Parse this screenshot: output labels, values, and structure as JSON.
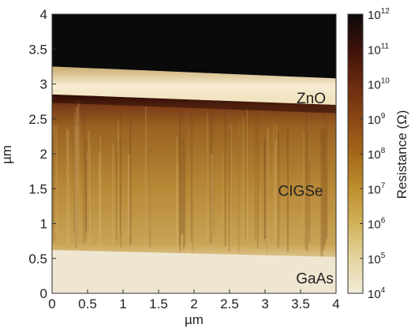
{
  "chart_data": {
    "type": "heatmap",
    "xlabel": "µm",
    "ylabel": "µm",
    "xlim": [
      0,
      4
    ],
    "ylim": [
      0,
      4
    ],
    "xticks": [
      "0",
      "0.5",
      "1",
      "1.5",
      "2",
      "2.5",
      "3",
      "3.5",
      "4"
    ],
    "yticks": [
      "0",
      "0.5",
      "1",
      "1.5",
      "2",
      "2.5",
      "3",
      "3.5",
      "4"
    ],
    "layers": [
      {
        "name": "GaAs",
        "y_bottom_left": 0,
        "y_bottom_right": 0,
        "y_top_left": 0.62,
        "y_top_right": 0.52,
        "resistance_log10": 4.1,
        "label_pos": [
          3.7,
          0.2
        ]
      },
      {
        "name": "CIGSe",
        "y_bottom_left": 0.62,
        "y_bottom_right": 0.52,
        "y_top_left": 2.85,
        "y_top_right": 2.7,
        "resistance_log10": 7.0,
        "label_pos": [
          3.5,
          1.45
        ]
      },
      {
        "name": "ZnO",
        "y_bottom_left": 2.85,
        "y_bottom_right": 2.7,
        "y_top_left": 3.25,
        "y_top_right": 3.08,
        "resistance_log10": 4.3,
        "label_pos": [
          3.65,
          2.78
        ]
      },
      {
        "name": "",
        "y_bottom_left": 3.25,
        "y_bottom_right": 3.08,
        "y_top_left": 4,
        "y_top_right": 4,
        "resistance_log10": 12
      }
    ],
    "colorbar": {
      "label": "Resistance (Ω)",
      "scale": "log",
      "range_exponent": [
        4,
        12
      ],
      "ticks": [
        {
          "base": "10",
          "exp": "12"
        },
        {
          "base": "10",
          "exp": "11"
        },
        {
          "base": "10",
          "exp": "10"
        },
        {
          "base": "10",
          "exp": "9"
        },
        {
          "base": "10",
          "exp": "8"
        },
        {
          "base": "10",
          "exp": "7"
        },
        {
          "base": "10",
          "exp": "6"
        },
        {
          "base": "10",
          "exp": "5"
        },
        {
          "base": "10",
          "exp": "4"
        }
      ],
      "colors": [
        "#f2ebd9",
        "#e3d49f",
        "#d1b25a",
        "#bd8f2e",
        "#a5681a",
        "#8a4714",
        "#6a2a0f",
        "#3d120a",
        "#0a0a0a"
      ]
    }
  }
}
